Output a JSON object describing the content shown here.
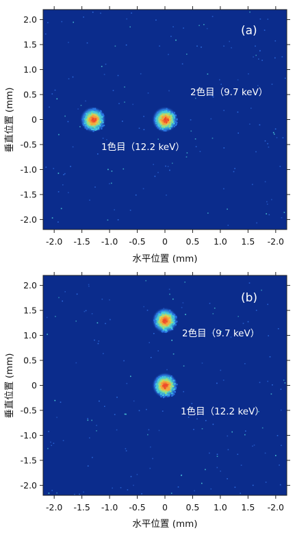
{
  "chart_data": [
    {
      "type": "heatmap",
      "panel_label": "(a)",
      "xlabel": "水平位置 (mm)",
      "ylabel": "垂直位置 (mm)",
      "xlim": [
        2.2,
        -2.2
      ],
      "ylim": [
        -2.2,
        2.2
      ],
      "x_ticks": [
        "-2.0",
        "-1.5",
        "-1.0",
        "-0.5",
        "0",
        "0.5",
        "1.0",
        "1.5",
        "-2.0"
      ],
      "y_ticks": [
        "2.0",
        "1.5",
        "1.0",
        "0.5",
        "0",
        "-0.5",
        "-1.0",
        "-1.5",
        "-2.0"
      ],
      "spots": [
        {
          "label": "1色目（12.2 keV）",
          "x": 0.0,
          "y": 0.0
        },
        {
          "label": "2色目（9.7 keV）",
          "x": 1.3,
          "y": 0.0
        }
      ],
      "colors": {
        "background": "#0a2a8a",
        "low": "#1f5fd6",
        "mid": "#3ad0e0",
        "high": "#f08a30",
        "peak": "#e23a2a"
      }
    },
    {
      "type": "heatmap",
      "panel_label": "(b)",
      "xlabel": "水平位置 (mm)",
      "ylabel": "垂直位置 (mm)",
      "xlim": [
        2.2,
        -2.2
      ],
      "ylim": [
        -2.2,
        2.2
      ],
      "x_ticks": [
        "-2.0",
        "-1.5",
        "-1.0",
        "-0.5",
        "0",
        "0.5",
        "1.0",
        "1.5",
        "-2.0"
      ],
      "y_ticks": [
        "2.0",
        "1.5",
        "1.0",
        "0.5",
        "0",
        "-0.5",
        "-1.0",
        "-1.5",
        "-2.0"
      ],
      "spots": [
        {
          "label": "1色目（12.2 keV）",
          "x": 0.0,
          "y": 0.0
        },
        {
          "label": "2色目（9.7 keV）",
          "x": 0.0,
          "y": 1.3
        }
      ],
      "colors": {
        "background": "#0a2a8a",
        "low": "#1f5fd6",
        "mid": "#3ad0e0",
        "high": "#f08a30",
        "peak": "#e23a2a"
      }
    }
  ]
}
